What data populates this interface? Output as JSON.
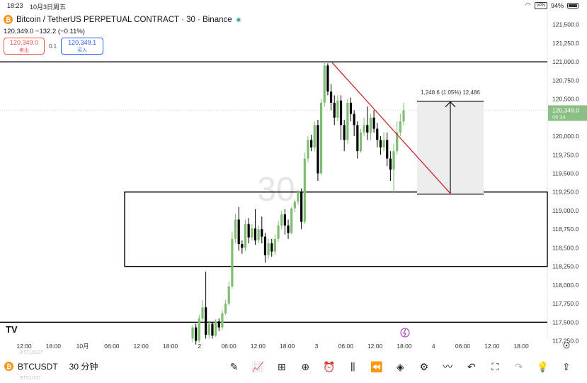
{
  "status_bar": {
    "time": "18:23",
    "date": "10月3日周五",
    "vpn": "VPN",
    "battery": "94%"
  },
  "header": {
    "symbol_title": "Bitcoin / TetherUS PERPETUAL CONTRACT · 30 · Binance",
    "price_line": "120,349.0  −132.2 (−0.11%)",
    "sell": {
      "price": "120,349.0",
      "label": "卖出"
    },
    "spread": "0.1",
    "buy": {
      "price": "120,349.1",
      "label": "买入"
    }
  },
  "bottom_bar": {
    "symbol": "BTCUSDT",
    "interval": "30 分钟",
    "ghost_top": "BTCUSDT",
    "ghost_bottom": "BTCUSD",
    "tools": [
      {
        "name": "draw-tool",
        "glyph": "✎",
        "disabled": false
      },
      {
        "name": "indicators",
        "glyph": "📈",
        "disabled": false
      },
      {
        "name": "layouts",
        "glyph": "⊞",
        "disabled": false
      },
      {
        "name": "add",
        "glyph": "⊕",
        "disabled": false
      },
      {
        "name": "alert",
        "glyph": "⏰",
        "disabled": false
      },
      {
        "name": "chart-type",
        "glyph": "⫼",
        "disabled": false
      },
      {
        "name": "replay",
        "glyph": "⏪",
        "disabled": false
      },
      {
        "name": "object-tree",
        "glyph": "◈",
        "disabled": false
      },
      {
        "name": "settings-sliders",
        "glyph": "⚙",
        "disabled": false
      },
      {
        "name": "trend",
        "glyph": "〰",
        "disabled": false
      },
      {
        "name": "undo",
        "glyph": "↶",
        "disabled": false
      },
      {
        "name": "fullscreen",
        "glyph": "⛶",
        "disabled": false
      },
      {
        "name": "redo",
        "glyph": "↷",
        "disabled": true
      },
      {
        "name": "ideas",
        "glyph": "💡",
        "disabled": false
      },
      {
        "name": "share",
        "glyph": "⇪",
        "disabled": false
      }
    ]
  },
  "chart_data": {
    "type": "candlestick",
    "watermark": "30",
    "brand_mark": "TV",
    "y_range": [
      117150,
      121650
    ],
    "y_ticks": [
      {
        "v": 121500,
        "label": "121,500.0"
      },
      {
        "v": 121250,
        "label": "121,250.0"
      },
      {
        "v": 121000,
        "label": "121,000.0"
      },
      {
        "v": 120750,
        "label": "120,750.0"
      },
      {
        "v": 120500,
        "label": "120,500.0"
      },
      {
        "v": 120000,
        "label": "120,000.0"
      },
      {
        "v": 119750,
        "label": "119,750.0"
      },
      {
        "v": 119500,
        "label": "119,500.0"
      },
      {
        "v": 119250,
        "label": "119,250.0"
      },
      {
        "v": 119000,
        "label": "119,000.0"
      },
      {
        "v": 118750,
        "label": "118,750.0"
      },
      {
        "v": 118500,
        "label": "118,500.0"
      },
      {
        "v": 118250,
        "label": "118,250.0"
      },
      {
        "v": 118000,
        "label": "118,000.0"
      },
      {
        "v": 117750,
        "label": "117,750.0"
      },
      {
        "v": 117500,
        "label": "117,500.0"
      },
      {
        "v": 117250,
        "label": "117,250.0"
      }
    ],
    "x_ticks": [
      "12:00",
      "18:00",
      "10月",
      "06:00",
      "12:00",
      "18:00",
      "2",
      "06:00",
      "12:00",
      "18:00",
      "3",
      "06:00",
      "12:00",
      "18:00",
      "4",
      "06:00",
      "12:00",
      "18:00"
    ],
    "current_price": {
      "label": "120,349.0",
      "countdown": "06:34",
      "value": 120349
    },
    "horizontal_levels": [
      121000,
      117500
    ],
    "zone": {
      "top": 119250,
      "bottom": 118250
    },
    "trendline": {
      "from": 120990,
      "to": 119220
    },
    "measure": {
      "label": "1,248.6 (1.05%) 12,486",
      "top": 120470,
      "bottom": 119221.4
    },
    "candles": [
      [
        117280,
        117430,
        117230,
        117460
      ],
      [
        117430,
        117250,
        117200,
        117480
      ],
      [
        117250,
        117550,
        117220,
        117600
      ],
      [
        117550,
        117700,
        117500,
        117800
      ],
      [
        117700,
        117330,
        117280,
        118180
      ],
      [
        117330,
        117480,
        117280,
        117520
      ],
      [
        117480,
        117320,
        117280,
        117500
      ],
      [
        117320,
        117510,
        117300,
        117540
      ],
      [
        117510,
        117430,
        117380,
        117550
      ],
      [
        117430,
        117620,
        117400,
        117660
      ],
      [
        117620,
        117750,
        117600,
        117800
      ],
      [
        117750,
        117980,
        117720,
        118050
      ],
      [
        117980,
        118620,
        117950,
        118720
      ],
      [
        118620,
        118880,
        118560,
        118960
      ],
      [
        118880,
        118550,
        118460,
        119050
      ],
      [
        118550,
        118500,
        118420,
        118600
      ],
      [
        118500,
        118820,
        118460,
        118880
      ],
      [
        118820,
        118640,
        118560,
        118900
      ],
      [
        118640,
        118760,
        118600,
        118820
      ],
      [
        118760,
        118600,
        118540,
        119020
      ],
      [
        118600,
        118750,
        118560,
        118800
      ],
      [
        118750,
        118650,
        118560,
        118920
      ],
      [
        118650,
        118400,
        118300,
        118700
      ],
      [
        118400,
        118560,
        118350,
        118620
      ],
      [
        118560,
        118450,
        118380,
        118620
      ],
      [
        118450,
        118620,
        118400,
        118680
      ],
      [
        118620,
        118800,
        118580,
        118860
      ],
      [
        118800,
        118950,
        118750,
        119000
      ],
      [
        118950,
        118800,
        118680,
        119020
      ],
      [
        118800,
        118700,
        118620,
        118880
      ],
      [
        118700,
        119030,
        118680,
        119050
      ],
      [
        119030,
        119120,
        118980,
        119150
      ],
      [
        119120,
        119250,
        119080,
        119280
      ],
      [
        119250,
        118850,
        118750,
        119300
      ],
      [
        118850,
        119700,
        118820,
        119780
      ],
      [
        119700,
        119950,
        119650,
        120000
      ],
      [
        119950,
        119850,
        119800,
        120020
      ],
      [
        119850,
        120150,
        119800,
        120200
      ],
      [
        120150,
        119500,
        119400,
        120220
      ],
      [
        119500,
        120450,
        119480,
        120500
      ],
      [
        120450,
        120950,
        120400,
        121000
      ],
      [
        120950,
        120600,
        120550,
        120980
      ],
      [
        120600,
        120450,
        120350,
        120700
      ],
      [
        120450,
        120250,
        120150,
        120550
      ],
      [
        120250,
        120480,
        120200,
        120550
      ],
      [
        120480,
        120150,
        119950,
        120550
      ],
      [
        120150,
        119950,
        119800,
        120220
      ],
      [
        119950,
        120450,
        119900,
        120500
      ],
      [
        120450,
        120300,
        120200,
        120520
      ],
      [
        120300,
        120150,
        120000,
        120350
      ],
      [
        120150,
        119800,
        119700,
        120200
      ],
      [
        119800,
        120050,
        119780,
        120100
      ],
      [
        120050,
        120150,
        120000,
        120250
      ],
      [
        120150,
        120050,
        119950,
        120400
      ],
      [
        120050,
        120250,
        119950,
        120300
      ],
      [
        120250,
        120100,
        120050,
        120350
      ],
      [
        120100,
        119950,
        119850,
        120180
      ],
      [
        119950,
        119850,
        119750,
        120000
      ],
      [
        119850,
        119950,
        119800,
        120050
      ],
      [
        119950,
        119700,
        119600,
        120050
      ],
      [
        119700,
        119550,
        119400,
        119800
      ],
      [
        119550,
        119800,
        119230,
        119900
      ],
      [
        119800,
        120050,
        119750,
        120200
      ],
      [
        120050,
        120200,
        120000,
        120300
      ],
      [
        120200,
        120349,
        120150,
        120450
      ]
    ]
  }
}
